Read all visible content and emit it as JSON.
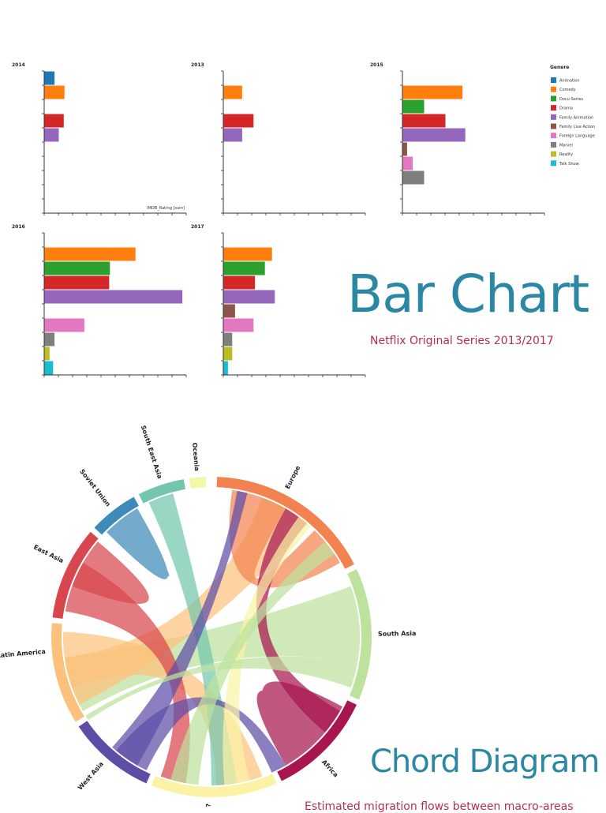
{
  "bar_section": {
    "title": "Bar Chart",
    "subtitle": "Netflix Original Series 2013/2017"
  },
  "chord_section": {
    "title": "Chord Diagram",
    "subtitle": "Estimated migration flows between macro-areas"
  },
  "legend": {
    "title": "Genere"
  },
  "genres": [
    {
      "name": "Animation",
      "color": "#1f77b4"
    },
    {
      "name": "Comedy",
      "color": "#ff7f0e"
    },
    {
      "name": "Docu-Series",
      "color": "#2ca02c"
    },
    {
      "name": "Drama",
      "color": "#d62728"
    },
    {
      "name": "Family Animation",
      "color": "#9467bd"
    },
    {
      "name": "Family Live Action",
      "color": "#8c564b"
    },
    {
      "name": "Foreign Language",
      "color": "#e377c2"
    },
    {
      "name": "Marvel",
      "color": "#7f7f7f"
    },
    {
      "name": "Reality",
      "color": "#bcbd22"
    },
    {
      "name": "Talk Show",
      "color": "#17becf"
    }
  ],
  "chart_data": [
    {
      "type": "bar",
      "title": "2014",
      "xlabel": "IMDB_Rating [sum]",
      "categories": [
        "Animation",
        "Comedy",
        "Docu-Series",
        "Drama",
        "Family Animation",
        "Family Live Action",
        "Foreign Language",
        "Marvel",
        "Reality",
        "Talk Show"
      ],
      "values": [
        7,
        14,
        0,
        13.5,
        10,
        0,
        0,
        0,
        0,
        0
      ],
      "xlim": [
        0,
        100
      ]
    },
    {
      "type": "bar",
      "title": "2013",
      "categories": [
        "Animation",
        "Comedy",
        "Docu-Series",
        "Drama",
        "Family Animation",
        "Family Live Action",
        "Foreign Language",
        "Marvel",
        "Reality",
        "Talk Show"
      ],
      "values": [
        0,
        13,
        0,
        21,
        13,
        0,
        0,
        0,
        0,
        0
      ],
      "xlim": [
        0,
        100
      ]
    },
    {
      "type": "bar",
      "title": "2015",
      "categories": [
        "Animation",
        "Comedy",
        "Docu-Series",
        "Drama",
        "Family Animation",
        "Family Live Action",
        "Foreign Language",
        "Marvel",
        "Reality",
        "Talk Show"
      ],
      "values": [
        0,
        42,
        15,
        30,
        44,
        3,
        7,
        15,
        0,
        0
      ],
      "xlim": [
        0,
        100
      ]
    },
    {
      "type": "bar",
      "title": "2016",
      "categories": [
        "Animation",
        "Comedy",
        "Docu-Series",
        "Drama",
        "Family Animation",
        "Family Live Action",
        "Foreign Language",
        "Marvel",
        "Reality",
        "Talk Show"
      ],
      "values": [
        0,
        64,
        46,
        45.5,
        97,
        0,
        28,
        7,
        3.5,
        6
      ],
      "xlim": [
        0,
        100
      ]
    },
    {
      "type": "bar",
      "title": "2017",
      "categories": [
        "Animation",
        "Comedy",
        "Docu-Series",
        "Drama",
        "Family Animation",
        "Family Live Action",
        "Foreign Language",
        "Marvel",
        "Reality",
        "Talk Show"
      ],
      "values": [
        0,
        34,
        29,
        22,
        36,
        8,
        21,
        6,
        6,
        3
      ],
      "xlim": [
        0,
        100
      ]
    },
    {
      "type": "chord",
      "regions": [
        {
          "name": "Europe",
          "color": "#f28350",
          "start": 2,
          "end": 63
        },
        {
          "name": "South Asia",
          "color": "#bde29c",
          "start": 65,
          "end": 113
        },
        {
          "name": "Africa",
          "color": "#a8164f",
          "start": 115,
          "end": 154
        },
        {
          "name": "Oceania",
          "color": "#fbf2a6",
          "start": 156,
          "end": 202
        },
        {
          "name": "West Asia",
          "color": "#5e4da7",
          "start": 204,
          "end": 236
        },
        {
          "name": "Latin America",
          "color": "#fcc27d",
          "start": 238,
          "end": 275
        },
        {
          "name": "East Asia",
          "color": "#d8464e",
          "start": 277,
          "end": 311
        },
        {
          "name": "Soviet Union",
          "color": "#3e8ab9",
          "start": 313,
          "end": 331
        },
        {
          "name": "South East Asia",
          "color": "#73c6ad",
          "start": 333,
          "end": 350
        },
        {
          "name": "Oceania",
          "color": "#f4f6a8",
          "start": 352,
          "end": 358
        }
      ],
      "labels": [
        {
          "text": "Europe",
          "angle": 27
        },
        {
          "text": "South Asia",
          "angle": 89
        },
        {
          "text": "Africa",
          "angle": 138
        },
        {
          "text": "?",
          "angle": 181
        },
        {
          "text": "West Asia",
          "angle": 221
        },
        {
          "text": "Latin America",
          "angle": 265
        },
        {
          "text": "East Asia",
          "angle": 297
        },
        {
          "text": "Soviet Union",
          "angle": 322
        },
        {
          "text": "South East Asia",
          "angle": 342
        },
        {
          "text": "Oceania",
          "angle": 355
        }
      ],
      "ribbons": [
        {
          "s": [
            70,
            100
          ],
          "t": [
            240,
            262
          ],
          "color": "#bde29c"
        },
        {
          "s": [
            243,
            262
          ],
          "t": [
            20,
            40
          ],
          "color": "#fcc27d"
        },
        {
          "s": [
            8,
            30
          ],
          "t": [
            44,
            60
          ],
          "color": "#f28350"
        },
        {
          "s": [
            118,
            150
          ],
          "t": [
            128,
            146
          ],
          "color": "#a8164f"
        },
        {
          "s": [
            120,
            130
          ],
          "t": [
            30,
            40
          ],
          "color": "#a8164f"
        },
        {
          "s": [
            160,
            178
          ],
          "t": [
            250,
            272
          ],
          "color": "#fcc27d"
        },
        {
          "s": [
            280,
            300
          ],
          "t": [
            190,
            200
          ],
          "color": "#d8464e"
        },
        {
          "s": [
            290,
            305
          ],
          "t": [
            300,
            310
          ],
          "color": "#d8464e"
        },
        {
          "s": [
            315,
            328
          ],
          "t": [
            322,
            330
          ],
          "color": "#3e8ab9"
        },
        {
          "s": [
            335,
            345
          ],
          "t": [
            170,
            180
          ],
          "color": "#73c6ad"
        },
        {
          "s": [
            206,
            220
          ],
          "t": [
            150,
            156
          ],
          "color": "#5e4da7"
        },
        {
          "s": [
            210,
            222
          ],
          "t": [
            10,
            14
          ],
          "color": "#5e4da7"
        },
        {
          "s": [
            165,
            175
          ],
          "t": [
            36,
            42
          ],
          "color": "#fbf2a6"
        },
        {
          "s": [
            185,
            196
          ],
          "t": [
            50,
            56
          ],
          "color": "#bde29c"
        },
        {
          "s": [
            100,
            110
          ],
          "t": [
            236,
            238
          ],
          "color": "#bde29c"
        }
      ]
    }
  ]
}
